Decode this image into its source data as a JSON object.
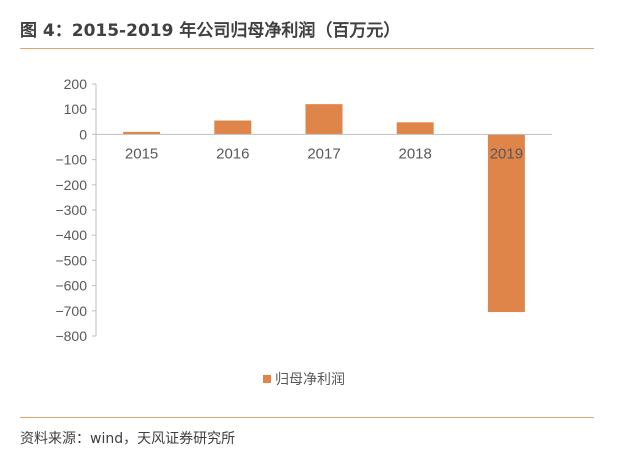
{
  "header": {
    "title": "图 4：2015-2019 年公司归母净利润（百万元）"
  },
  "footer": {
    "source": "资料来源：wind，天风证券研究所"
  },
  "colors": {
    "bar": "#E0854A",
    "rule": "#E8A36A",
    "axis": "#BFBFBF",
    "text": "#595959"
  },
  "chart_data": {
    "type": "bar",
    "categories": [
      "2015",
      "2016",
      "2017",
      "2018",
      "2019"
    ],
    "series": [
      {
        "name": "归母净利润",
        "values": [
          10,
          55,
          120,
          48,
          -705
        ]
      }
    ],
    "ylim": [
      -800,
      200
    ],
    "yticks": [
      200,
      100,
      0,
      -100,
      -200,
      -300,
      -400,
      -500,
      -600,
      -700,
      -800
    ],
    "ytick_labels": [
      "200",
      "100",
      "0",
      "−100",
      "−200",
      "−300",
      "−400",
      "−500",
      "−600",
      "−700",
      "−800"
    ],
    "legend_position": "bottom",
    "grid": false
  }
}
